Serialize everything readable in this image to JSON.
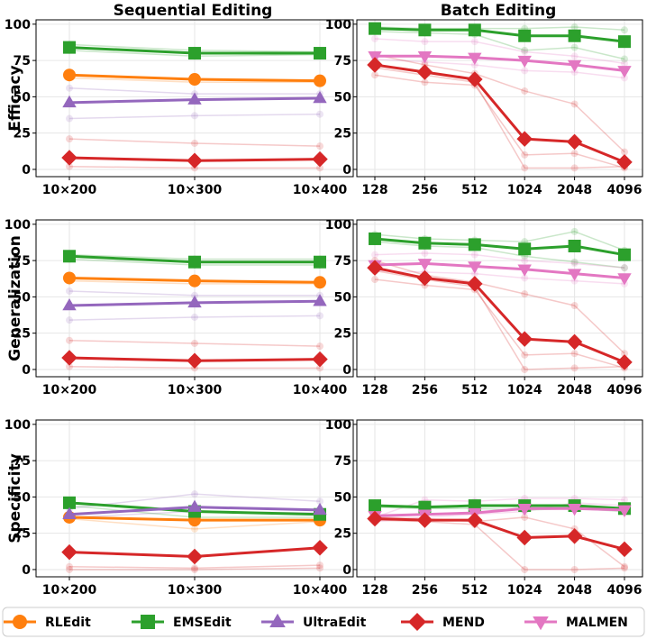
{
  "chart_data": {
    "type": "line",
    "columns": [
      "Sequential Editing",
      "Batch Editing"
    ],
    "rows": [
      "Efficacy",
      "Generalization",
      "Specificity"
    ],
    "x_ticks": {
      "seq": [
        "10×200",
        "10×300",
        "10×400"
      ],
      "batch": [
        "128",
        "256",
        "512",
        "1024",
        "2048",
        "4096"
      ]
    },
    "y_ticks": [
      "0",
      "25",
      "50",
      "75",
      "100"
    ],
    "ylim": [
      -5,
      103
    ],
    "colors": {
      "RLEdit": "#ff7f0e",
      "EMSEdit": "#2ca02c",
      "UltraEdit": "#9467bd",
      "MEND": "#d62728",
      "MALMEN": "#e377c2"
    },
    "markers": {
      "RLEdit": "circle",
      "EMSEdit": "square",
      "UltraEdit": "triangle-up",
      "MEND": "diamond",
      "MALMEN": "triangle-down"
    },
    "legend": [
      "RLEdit",
      "EMSEdit",
      "UltraEdit",
      "MEND",
      "MALMEN"
    ],
    "panels": [
      {
        "row": "Efficacy",
        "col": "seq",
        "series": [
          {
            "name": "RLEdit",
            "values": [
              65,
              62,
              61
            ]
          },
          {
            "name": "EMSEdit",
            "values": [
              84,
              80,
              80
            ]
          },
          {
            "name": "UltraEdit",
            "values": [
              46,
              48,
              49
            ]
          },
          {
            "name": "MEND",
            "values": [
              8,
              6,
              7
            ]
          }
        ],
        "faint": [
          {
            "color": "#2ca02c",
            "values": [
              86,
              82,
              81
            ]
          },
          {
            "color": "#2ca02c",
            "values": [
              82,
              78,
              79
            ]
          },
          {
            "color": "#9467bd",
            "values": [
              56,
              52,
              52
            ]
          },
          {
            "color": "#9467bd",
            "values": [
              35,
              37,
              38
            ]
          },
          {
            "color": "#d62728",
            "values": [
              21,
              18,
              16
            ]
          },
          {
            "color": "#d62728",
            "values": [
              2,
              1,
              1
            ]
          },
          {
            "color": "#ff7f0e",
            "values": [
              63,
              60,
              60
            ]
          }
        ]
      },
      {
        "row": "Efficacy",
        "col": "batch",
        "series": [
          {
            "name": "EMSEdit",
            "values": [
              97,
              96,
              96,
              92,
              92,
              88
            ]
          },
          {
            "name": "MALMEN",
            "values": [
              78,
              78,
              77,
              75,
              72,
              68
            ]
          },
          {
            "name": "MEND",
            "values": [
              72,
              67,
              62,
              21,
              19,
              5
            ]
          }
        ],
        "faint": [
          {
            "color": "#2ca02c",
            "values": [
              98,
              97,
              97,
              97,
              98,
              96
            ]
          },
          {
            "color": "#2ca02c",
            "values": [
              95,
              94,
              93,
              82,
              84,
              76
            ]
          },
          {
            "color": "#e377c2",
            "values": [
              90,
              88,
              88,
              81,
              78,
              73
            ]
          },
          {
            "color": "#e377c2",
            "values": [
              76,
              74,
              72,
              68,
              67,
              63
            ]
          },
          {
            "color": "#d62728",
            "values": [
              79,
              72,
              66,
              54,
              45,
              12
            ]
          },
          {
            "color": "#d62728",
            "values": [
              65,
              60,
              58,
              10,
              11,
              1
            ]
          },
          {
            "color": "#d62728",
            "values": [
              70,
              65,
              60,
              1,
              1,
              2
            ]
          }
        ]
      },
      {
        "row": "Generalization",
        "col": "seq",
        "series": [
          {
            "name": "RLEdit",
            "values": [
              63,
              61,
              60
            ]
          },
          {
            "name": "EMSEdit",
            "values": [
              78,
              74,
              74
            ]
          },
          {
            "name": "UltraEdit",
            "values": [
              44,
              46,
              47
            ]
          },
          {
            "name": "MEND",
            "values": [
              8,
              6,
              7
            ]
          }
        ],
        "faint": [
          {
            "color": "#2ca02c",
            "values": [
              79,
              76,
              76
            ]
          },
          {
            "color": "#2ca02c",
            "values": [
              76,
              72,
              72
            ]
          },
          {
            "color": "#9467bd",
            "values": [
              54,
              51,
              51
            ]
          },
          {
            "color": "#9467bd",
            "values": [
              34,
              36,
              37
            ]
          },
          {
            "color": "#d62728",
            "values": [
              20,
              18,
              16
            ]
          },
          {
            "color": "#d62728",
            "values": [
              2,
              1,
              1
            ]
          },
          {
            "color": "#ff7f0e",
            "values": [
              61,
              59,
              59
            ]
          }
        ]
      },
      {
        "row": "Generalization",
        "col": "batch",
        "series": [
          {
            "name": "EMSEdit",
            "values": [
              90,
              87,
              86,
              83,
              85,
              79
            ]
          },
          {
            "name": "MALMEN",
            "values": [
              72,
              73,
              71,
              69,
              66,
              63
            ]
          },
          {
            "name": "MEND",
            "values": [
              70,
              63,
              59,
              21,
              19,
              5
            ]
          }
        ],
        "faint": [
          {
            "color": "#2ca02c",
            "values": [
              93,
              90,
              89,
              88,
              95,
              82
            ]
          },
          {
            "color": "#2ca02c",
            "values": [
              88,
              85,
              84,
              78,
              74,
              70
            ]
          },
          {
            "color": "#e377c2",
            "values": [
              79,
              80,
              79,
              75,
              73,
              70
            ]
          },
          {
            "color": "#e377c2",
            "values": [
              68,
              67,
              66,
              63,
              61,
              59
            ]
          },
          {
            "color": "#d62728",
            "values": [
              75,
              65,
              60,
              52,
              44,
              11
            ]
          },
          {
            "color": "#d62728",
            "values": [
              62,
              58,
              55,
              10,
              11,
              1
            ]
          },
          {
            "color": "#d62728",
            "values": [
              68,
              62,
              57,
              0,
              1,
              2
            ]
          }
        ]
      },
      {
        "row": "Specificity",
        "col": "seq",
        "series": [
          {
            "name": "RLEdit",
            "values": [
              36,
              34,
              34
            ]
          },
          {
            "name": "EMSEdit",
            "values": [
              46,
              40,
              38
            ]
          },
          {
            "name": "UltraEdit",
            "values": [
              38,
              43,
              41
            ]
          },
          {
            "name": "MEND",
            "values": [
              12,
              9,
              15
            ]
          }
        ],
        "faint": [
          {
            "color": "#9467bd",
            "values": [
              42,
              52,
              47
            ]
          },
          {
            "color": "#9467bd",
            "values": [
              36,
              40,
              39
            ]
          },
          {
            "color": "#ff7f0e",
            "values": [
              35,
              28,
              33
            ]
          },
          {
            "color": "#2ca02c",
            "values": [
              44,
              36,
              36
            ]
          },
          {
            "color": "#d62728",
            "values": [
              2,
              1,
              3
            ]
          },
          {
            "color": "#d62728",
            "values": [
              0,
              0,
              1
            ]
          }
        ]
      },
      {
        "row": "Specificity",
        "col": "batch",
        "series": [
          {
            "name": "EMSEdit",
            "values": [
              44,
              43,
              44,
              44,
              44,
              42
            ]
          },
          {
            "name": "MALMEN",
            "values": [
              37,
              38,
              39,
              42,
              42,
              41
            ]
          },
          {
            "name": "MEND",
            "values": [
              35,
              34,
              34,
              22,
              23,
              14
            ]
          }
        ],
        "faint": [
          {
            "color": "#e377c2",
            "values": [
              36,
              48,
              47,
              49,
              49,
              48
            ]
          },
          {
            "color": "#e377c2",
            "values": [
              33,
              36,
              38,
              40,
              46,
              44
            ]
          },
          {
            "color": "#2ca02c",
            "values": [
              43,
              42,
              42,
              41,
              42,
              40
            ]
          },
          {
            "color": "#d62728",
            "values": [
              34,
              33,
              31,
              0,
              0,
              1
            ]
          },
          {
            "color": "#d62728",
            "values": [
              36,
              35,
              33,
              36,
              28,
              2
            ]
          }
        ]
      }
    ]
  }
}
